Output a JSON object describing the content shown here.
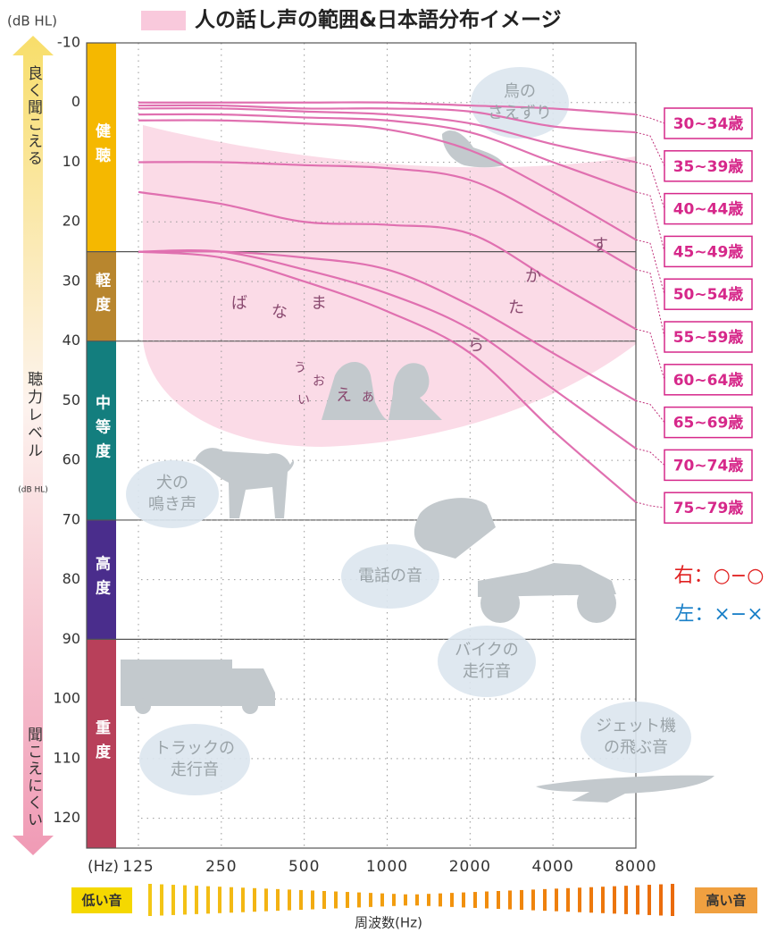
{
  "chart_data": {
    "type": "line",
    "title": "人の話し声の範囲&日本語分布イメージ",
    "y_unit": "(dB HL)",
    "x_unit": "(Hz)",
    "x_label": "周波数(Hz)",
    "x": [
      125,
      250,
      500,
      1000,
      2000,
      4000,
      8000
    ],
    "xlim": [
      125,
      8000
    ],
    "xticks": [
      125,
      250,
      500,
      1000,
      2000,
      4000,
      8000
    ],
    "xscale": "log",
    "ylim": [
      -10,
      125
    ],
    "yticks": [
      -10,
      0,
      10,
      20,
      30,
      40,
      50,
      60,
      70,
      80,
      90,
      100,
      110,
      120
    ],
    "y_inverted": true,
    "grid": true,
    "series": [
      {
        "name": "30~34歳",
        "color": "#e070b0",
        "values": [
          0,
          0,
          0,
          0,
          0.5,
          1,
          2
        ]
      },
      {
        "name": "35~39歳",
        "color": "#e070b0",
        "values": [
          0.5,
          0.5,
          1,
          1,
          1.5,
          4,
          5
        ]
      },
      {
        "name": "40~44歳",
        "color": "#e070b0",
        "values": [
          1,
          1,
          1.5,
          2,
          3.5,
          7,
          10
        ]
      },
      {
        "name": "45~49歳",
        "color": "#e070b0",
        "values": [
          2,
          2,
          2.5,
          3,
          5,
          10,
          15
        ]
      },
      {
        "name": "50~54歳",
        "color": "#e070b0",
        "values": [
          3,
          3,
          3.5,
          4.5,
          8,
          15,
          23
        ]
      },
      {
        "name": "55~59歳",
        "color": "#e070b0",
        "values": [
          10,
          10,
          10.5,
          11,
          13,
          20,
          28
        ]
      },
      {
        "name": "60~64歳",
        "color": "#e070b0",
        "values": [
          15,
          17,
          20,
          20.5,
          22,
          30,
          38
        ]
      },
      {
        "name": "65~69歳",
        "color": "#e070b0",
        "values": [
          25,
          25,
          26,
          28,
          34,
          42,
          50
        ]
      },
      {
        "name": "70~74歳",
        "color": "#e070b0",
        "values": [
          25,
          25,
          28,
          32,
          38,
          48,
          58
        ]
      },
      {
        "name": "75~79歳",
        "color": "#e070b0",
        "values": [
          25,
          26,
          30,
          35,
          42,
          55,
          67
        ]
      }
    ],
    "levels": [
      {
        "label": "健聴",
        "from": -10,
        "to": 25,
        "color": "#f5b800"
      },
      {
        "label": "軽度",
        "from": 25,
        "to": 40,
        "color": "#b8862e"
      },
      {
        "label": "中等度",
        "from": 40,
        "to": 70,
        "color": "#137e7e"
      },
      {
        "label": "高度",
        "from": 70,
        "to": 90,
        "color": "#4a2d8c"
      },
      {
        "label": "重度",
        "from": 90,
        "to": 125,
        "color": "#b8405a"
      }
    ],
    "speech_sounds": [
      "す",
      "か",
      "た",
      "ら",
      "ば",
      "な",
      "ま",
      "う",
      "お",
      "い",
      "え",
      "あ"
    ],
    "sounds": [
      {
        "lines": [
          "鳥の",
          "さえずり"
        ]
      },
      {
        "lines": [
          "犬の",
          "鳴き声"
        ]
      },
      {
        "lines": [
          "電話の音"
        ]
      },
      {
        "lines": [
          "バイクの",
          "走行音"
        ]
      },
      {
        "lines": [
          "トラックの",
          "走行音"
        ]
      },
      {
        "lines": [
          "ジェット機",
          "の飛ぶ音"
        ]
      }
    ],
    "legend_right": "右：○−○",
    "legend_left": "左：×−×",
    "side_top": "良く聞こえる",
    "side_middle": "聴力レベル",
    "side_unit": "(dB HL)",
    "side_bottom": "聞こえにくい",
    "low": "低い音",
    "high": "高い音"
  }
}
